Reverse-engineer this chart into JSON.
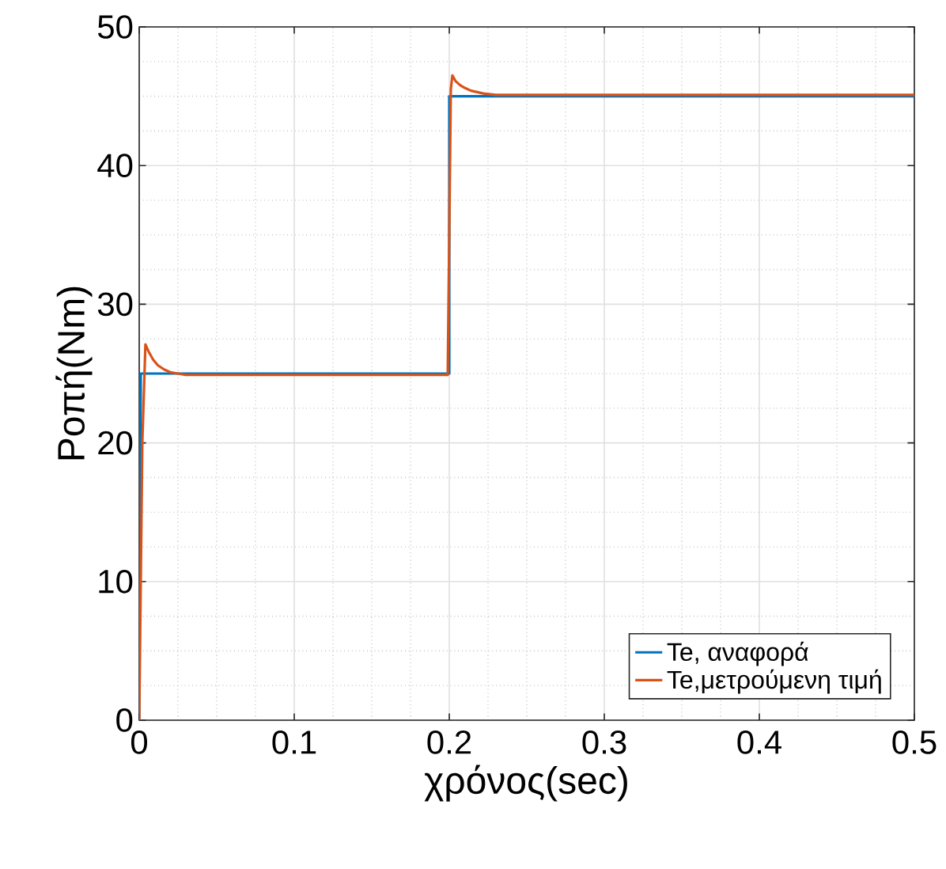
{
  "chart_data": {
    "type": "line",
    "xlabel": "χρόνος(sec)",
    "ylabel": "Ροπή(Nm)",
    "xlim": [
      0,
      0.5
    ],
    "ylim": [
      0,
      50
    ],
    "xticks": [
      0,
      0.1,
      0.2,
      0.3,
      0.4,
      0.5
    ],
    "yticks": [
      0,
      10,
      20,
      30,
      40,
      50
    ],
    "grid": true,
    "legend": "bottom right",
    "line_style": "solid",
    "marker": "none",
    "series": [
      {
        "name": "Te, αναφορά",
        "color": "#0072bd",
        "x": [
          0,
          0.001,
          0.2,
          0.2,
          0.5
        ],
        "values": [
          0,
          25,
          25,
          45,
          45
        ]
      },
      {
        "name": "Te,μετρούμενη τιμή",
        "color": "#d95319",
        "x": [
          0,
          0.002,
          0.004,
          0.006,
          0.009,
          0.012,
          0.016,
          0.02,
          0.025,
          0.03,
          0.05,
          0.1,
          0.15,
          0.199,
          0.2,
          0.201,
          0.202,
          0.204,
          0.207,
          0.21,
          0.214,
          0.218,
          0.222,
          0.23,
          0.26,
          0.3,
          0.35,
          0.4,
          0.45,
          0.5
        ],
        "values": [
          0,
          20,
          27.1,
          26.6,
          26,
          25.6,
          25.3,
          25.1,
          25,
          24.9,
          24.9,
          24.9,
          24.9,
          24.9,
          35,
          45.5,
          46.5,
          46.1,
          45.8,
          45.6,
          45.4,
          45.3,
          45.2,
          45.1,
          45.1,
          45.1,
          45.1,
          45.1,
          45.1,
          45.1
        ]
      }
    ]
  }
}
